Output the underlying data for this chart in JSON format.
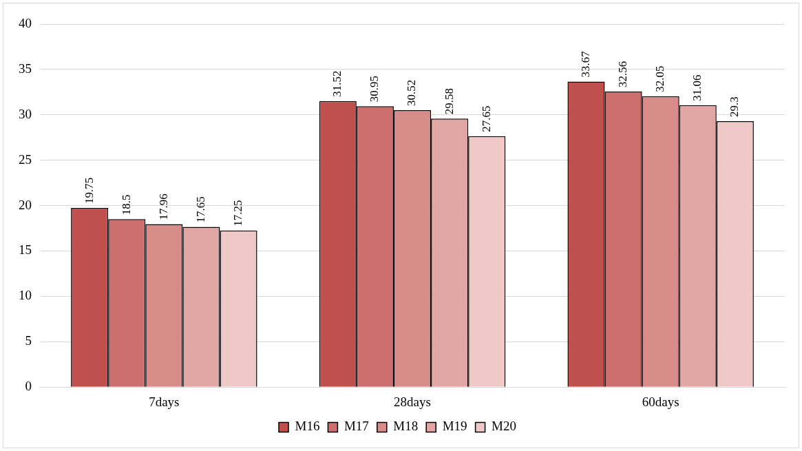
{
  "chart_data": {
    "type": "bar",
    "categories": [
      "7days",
      "28days",
      "60days"
    ],
    "series": [
      {
        "name": "M16",
        "color": "#c0504d",
        "values": [
          19.75,
          31.52,
          33.67
        ]
      },
      {
        "name": "M17",
        "color": "#cc6e6b",
        "values": [
          18.5,
          30.95,
          32.56
        ]
      },
      {
        "name": "M18",
        "color": "#d88c8a",
        "values": [
          17.96,
          30.52,
          32.05
        ]
      },
      {
        "name": "M19",
        "color": "#e2a6a4",
        "values": [
          17.65,
          29.58,
          31.06
        ]
      },
      {
        "name": "M20",
        "color": "#eec9c8",
        "values": [
          17.25,
          27.65,
          29.3
        ]
      }
    ],
    "ylim": [
      0,
      40
    ],
    "yticks": [
      0,
      5,
      10,
      15,
      20,
      25,
      30,
      35,
      40
    ],
    "grid": "y",
    "legend": "bottom",
    "data_labels": true
  }
}
